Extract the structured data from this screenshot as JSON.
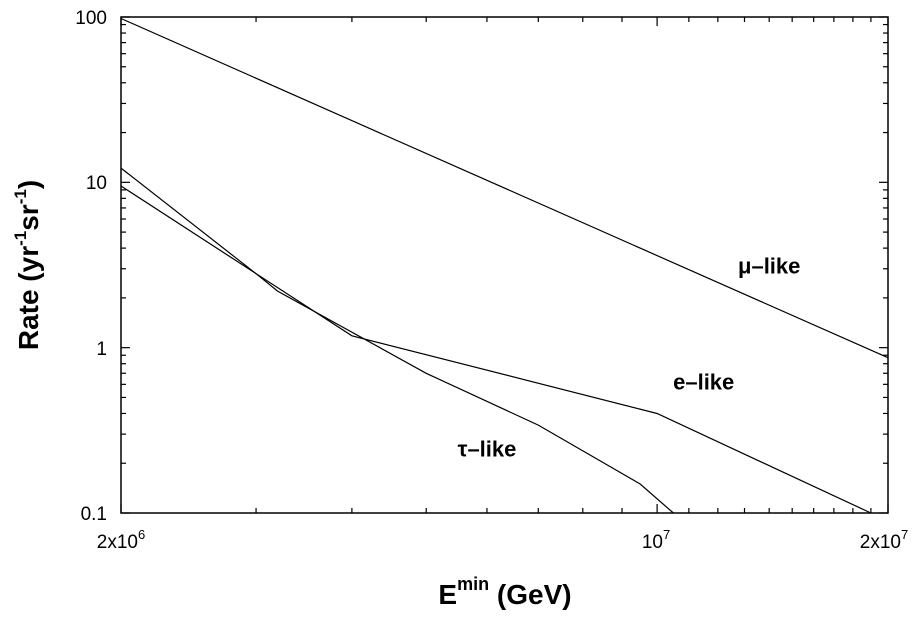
{
  "chart_data": {
    "type": "line",
    "xscale": "log",
    "yscale": "log",
    "xlim": [
      2000000,
      20000000
    ],
    "ylim": [
      0.1,
      100
    ],
    "grid": false,
    "legend": "none",
    "xlabel_base": "E",
    "xlabel_sup": "min",
    "xlabel_unit": " (GeV)",
    "ylabel_parts": [
      "Rate (yr",
      "-1",
      "sr",
      "-1",
      ")"
    ],
    "x_ticks": [
      {
        "value": 2000000,
        "base": "2x10",
        "exp": "6"
      },
      {
        "value": 10000000,
        "base": "10",
        "exp": "7"
      },
      {
        "value": 20000000,
        "base": "2x10",
        "exp": "7"
      }
    ],
    "y_ticks": [
      {
        "value": 100,
        "label": "100"
      },
      {
        "value": 10,
        "label": "10"
      },
      {
        "value": 1,
        "label": "1"
      },
      {
        "value": 0.1,
        "label": "0.1"
      }
    ],
    "series": [
      {
        "name": "μ–like",
        "x": [
          2000000,
          20000000
        ],
        "y": [
          98,
          0.87
        ]
      },
      {
        "name": "e–like",
        "x": [
          2000000,
          4000000,
          10000000,
          19000000
        ],
        "y": [
          9.5,
          1.18,
          0.4,
          0.1
        ]
      },
      {
        "name": "τ–like",
        "x": [
          2000000,
          3000000,
          3200000,
          5000000,
          7000000,
          9500000,
          10500000
        ],
        "y": [
          12.2,
          2.8,
          2.2,
          0.7,
          0.34,
          0.15,
          0.1
        ]
      }
    ],
    "series_label_anchor": [
      {
        "x": 14000000,
        "y": 2.8
      },
      {
        "x": 11500000,
        "y": 0.56
      },
      {
        "x": 6000000,
        "y": 0.22
      }
    ]
  }
}
